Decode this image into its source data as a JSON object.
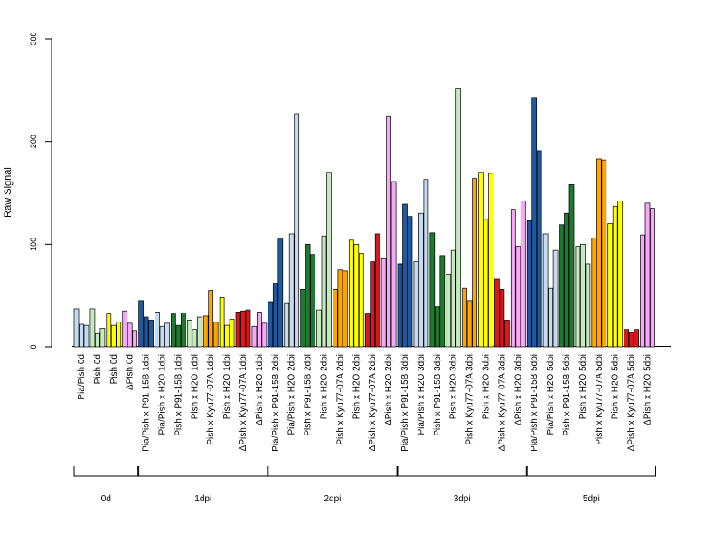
{
  "chart_data": {
    "type": "bar",
    "title": "",
    "ylabel": "Raw Signal",
    "xlabel": "",
    "ylim": [
      0,
      300
    ],
    "yticks": [
      0,
      100,
      200,
      300
    ],
    "grid": false,
    "legend": "none",
    "bars_per_group": 3,
    "groups": [
      {
        "label": "Pia/Pish 0d",
        "color": "#C6DBEF",
        "values": [
          37,
          22,
          21
        ]
      },
      {
        "label": "Pish 0d",
        "color": "#C7E9C0",
        "values": [
          37,
          13,
          18
        ]
      },
      {
        "label": "Pish 0d",
        "color": "#FFFF00",
        "values": [
          32,
          21,
          24
        ]
      },
      {
        "label": "ΔPish 0d",
        "color": "#F8A8F8",
        "values": [
          35,
          23,
          16
        ]
      },
      {
        "label": "Pia/Pish x P91-15B 1dpi",
        "color": "#1F5AA0",
        "values": [
          45,
          29,
          26
        ]
      },
      {
        "label": "Pia/Pish x H2O 1dpi",
        "color": "#C6DBEF",
        "values": [
          34,
          20,
          23
        ]
      },
      {
        "label": "Pish x P91-15B 1dpi",
        "color": "#1E7A2E",
        "values": [
          32,
          21,
          33
        ]
      },
      {
        "label": "Pish x H2O 1dpi",
        "color": "#C7E9C0",
        "values": [
          26,
          17,
          29
        ]
      },
      {
        "label": "Pish x Kyu77-07A 1dpi",
        "color": "#FFA500",
        "values": [
          30,
          55,
          24
        ]
      },
      {
        "label": "Pish x H2O 1dpi",
        "color": "#FFFF00",
        "values": [
          48,
          21,
          27
        ]
      },
      {
        "label": "ΔPish x Kyu77-07A 1dpi",
        "color": "#D7191C",
        "values": [
          34,
          35,
          36
        ]
      },
      {
        "label": "ΔPish x H2O 1dpi",
        "color": "#F8A8F8",
        "values": [
          20,
          34,
          23
        ]
      },
      {
        "label": "Pia/Pish x P91-15B 2dpi",
        "color": "#1F5AA0",
        "values": [
          44,
          62,
          105
        ]
      },
      {
        "label": "Pia/Pish x H2O 2dpi",
        "color": "#C6DBEF",
        "values": [
          43,
          110,
          227
        ]
      },
      {
        "label": "Pish x P91-15B 2dpi",
        "color": "#1E7A2E",
        "values": [
          56,
          100,
          90
        ]
      },
      {
        "label": "Pish x H2O 2dpi",
        "color": "#C7E9C0",
        "values": [
          36,
          108,
          170
        ]
      },
      {
        "label": "Pish x Kyu77-07A 2dpi",
        "color": "#FFA500",
        "values": [
          56,
          75,
          74
        ]
      },
      {
        "label": "Pish x H2O 2dpi",
        "color": "#FFFF00",
        "values": [
          104,
          100,
          91
        ]
      },
      {
        "label": "ΔPish x Kyu77-07A 2dpi",
        "color": "#D7191C",
        "values": [
          32,
          83,
          110
        ]
      },
      {
        "label": "ΔPish x H2O 2dpi",
        "color": "#F8A8F8",
        "values": [
          86,
          225,
          161
        ]
      },
      {
        "label": "Pia/Pish x P91-15B 3dpi",
        "color": "#1F5AA0",
        "values": [
          81,
          139,
          127
        ]
      },
      {
        "label": "Pia/Pish x H2O 3dpi",
        "color": "#C6DBEF",
        "values": [
          83,
          130,
          163
        ]
      },
      {
        "label": "Pish x P91-15B 3dpi",
        "color": "#1E7A2E",
        "values": [
          111,
          39,
          89
        ]
      },
      {
        "label": "Pish x H2O 3dpi",
        "color": "#C7E9C0",
        "values": [
          71,
          94,
          252
        ]
      },
      {
        "label": "Pish x Kyu77-07A 3dpi",
        "color": "#FFA500",
        "values": [
          57,
          45,
          164
        ]
      },
      {
        "label": "Pish x H2O 3dpi",
        "color": "#FFFF00",
        "values": [
          170,
          124,
          169
        ]
      },
      {
        "label": "ΔPish x Kyu77-07A 3dpi",
        "color": "#D7191C",
        "values": [
          66,
          56,
          26
        ]
      },
      {
        "label": "ΔPish x H2O 3dpi",
        "color": "#F8A8F8",
        "values": [
          134,
          98,
          142
        ]
      },
      {
        "label": "Pia/Pish x P91-15B 5dpi",
        "color": "#1F5AA0",
        "values": [
          123,
          243,
          191
        ]
      },
      {
        "label": "Pia/Pish x H2O 5dpi",
        "color": "#C6DBEF",
        "values": [
          110,
          57,
          94
        ]
      },
      {
        "label": "Pish x P91-15B 5dpi",
        "color": "#1E7A2E",
        "values": [
          119,
          130,
          158
        ]
      },
      {
        "label": "Pish x H2O 5dpi",
        "color": "#C7E9C0",
        "values": [
          98,
          100,
          81
        ]
      },
      {
        "label": "Pish x Kyu77-07A 5dpi",
        "color": "#FFA500",
        "values": [
          106,
          183,
          182
        ]
      },
      {
        "label": "Pish x H2O 5dpi",
        "color": "#FFFF00",
        "values": [
          120,
          137,
          142
        ]
      },
      {
        "label": "ΔPish x Kyu77-07A 5dpi",
        "color": "#D7191C",
        "values": [
          17,
          14,
          17
        ]
      },
      {
        "label": "ΔPish x H2O 5dpi",
        "color": "#F8A8F8",
        "values": [
          109,
          140,
          135
        ]
      }
    ],
    "timepoints": [
      {
        "label": "0d",
        "from": 0,
        "to": 3
      },
      {
        "label": "1dpi",
        "from": 4,
        "to": 11
      },
      {
        "label": "2dpi",
        "from": 12,
        "to": 19
      },
      {
        "label": "3dpi",
        "from": 20,
        "to": 27
      },
      {
        "label": "5dpi",
        "from": 28,
        "to": 35
      }
    ]
  }
}
